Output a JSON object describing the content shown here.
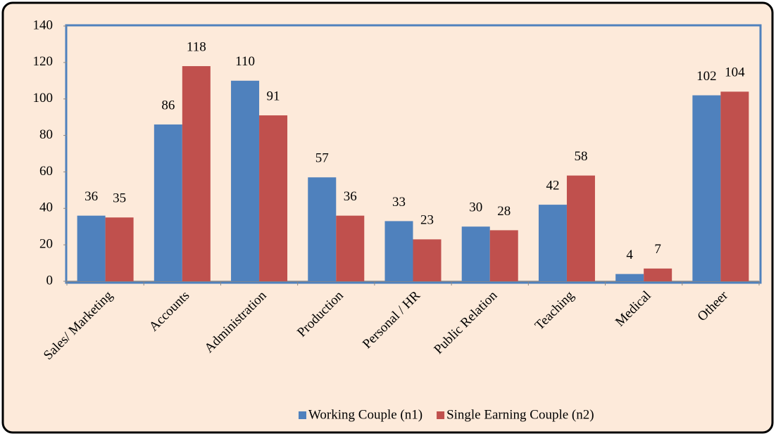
{
  "chart_data": {
    "type": "bar",
    "categories": [
      "Sales/ Marketing",
      "Accounts",
      "Administration",
      "Production",
      "Personal / HR",
      "Public Relation",
      "Teaching",
      "Medical",
      "Otheer"
    ],
    "series": [
      {
        "name": "Working Couple (n1)",
        "color": "#4f81bd",
        "values": [
          36,
          86,
          110,
          57,
          33,
          30,
          42,
          4,
          102
        ]
      },
      {
        "name": "Single Earning Couple (n2)",
        "color": "#c0504d",
        "values": [
          35,
          118,
          91,
          36,
          23,
          28,
          58,
          7,
          104
        ]
      }
    ],
    "ylim": [
      0,
      140
    ],
    "yticks": [
      0,
      20,
      40,
      60,
      80,
      100,
      120,
      140
    ],
    "legend": "bottom",
    "grid": false
  }
}
